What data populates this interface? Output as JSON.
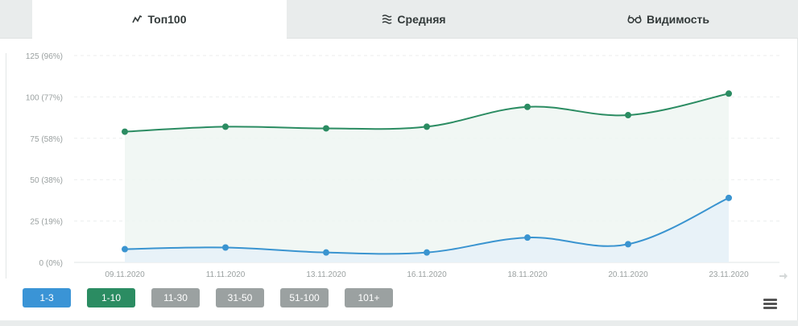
{
  "tabs": [
    {
      "label": "Топ100",
      "icon": "line-chart-icon",
      "active": true
    },
    {
      "label": "Средняя",
      "icon": "average-lines-icon",
      "active": false
    },
    {
      "label": "Видимость",
      "icon": "glasses-icon",
      "active": false
    }
  ],
  "chart_data": {
    "type": "area",
    "categories": [
      "09.11.2020",
      "11.11.2020",
      "13.11.2020",
      "16.11.2020",
      "18.11.2020",
      "20.11.2020",
      "23.11.2020"
    ],
    "y_tick_labels": [
      "0 (0%)",
      "25 (19%)",
      "50 (38%)",
      "75 (58%)",
      "100 (77%)",
      "125 (96%)"
    ],
    "y_ticks": [
      0,
      25,
      50,
      75,
      100,
      125
    ],
    "ylim": [
      0,
      125
    ],
    "grid": true,
    "series": [
      {
        "values": [
          79,
          82,
          81,
          82,
          94,
          89,
          102
        ],
        "color": "#2b8c62"
      },
      {
        "values": [
          8,
          9,
          6,
          6,
          15,
          11,
          39
        ],
        "color": "#3a94d0"
      }
    ]
  },
  "range_buttons": [
    {
      "label": "1-3",
      "color": "#3a94d6"
    },
    {
      "label": "1-10",
      "color": "#2b8c62"
    },
    {
      "label": "11-30",
      "color": "#9ba1a1"
    },
    {
      "label": "31-50",
      "color": "#9ba1a1"
    },
    {
      "label": "51-100",
      "color": "#9ba1a1"
    },
    {
      "label": "101+",
      "color": "#9ba1a1"
    }
  ],
  "menu_icon": "hamburger-menu-icon",
  "scroll_icon": "arrow-right-icon"
}
